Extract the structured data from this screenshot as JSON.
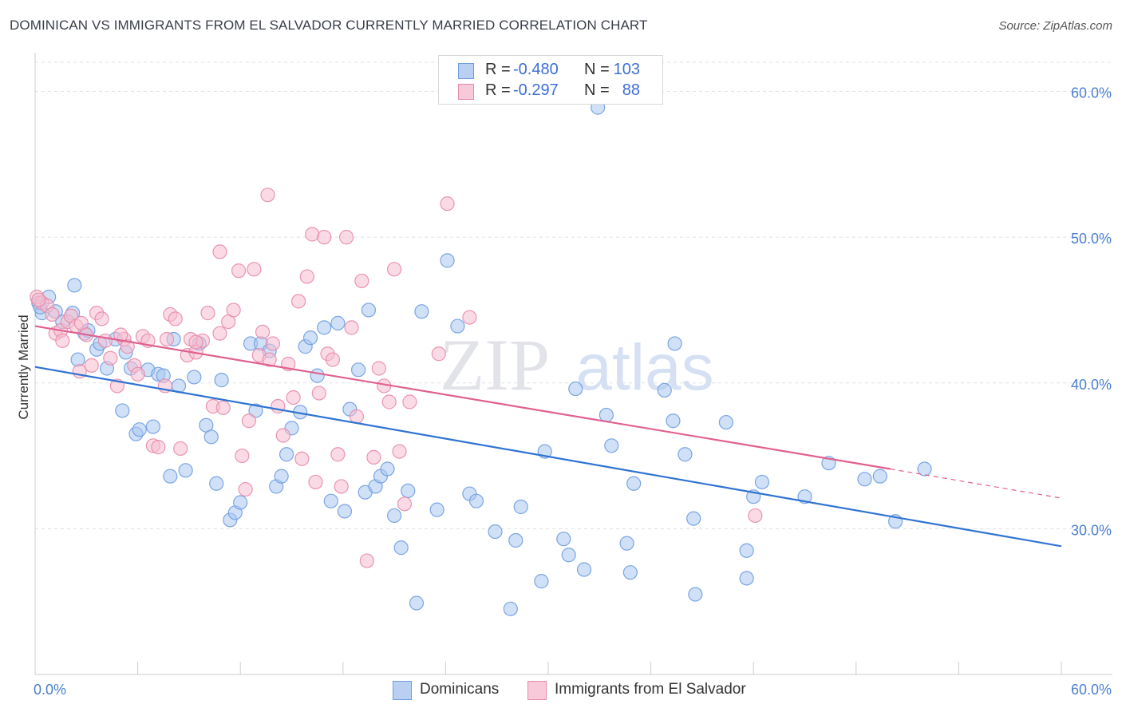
{
  "title": "DOMINICAN VS IMMIGRANTS FROM EL SALVADOR CURRENTLY MARRIED CORRELATION CHART",
  "source": "Source: ZipAtlas.com",
  "watermark": {
    "zip": "ZIP",
    "atlas": "atlas"
  },
  "legend": {
    "rows": [
      {
        "r_label": "R =",
        "r_value": "-0.480",
        "n_label": "N =",
        "n_value": "103"
      },
      {
        "r_label": "R =",
        "r_value": "-0.297",
        "n_label": "N =",
        "n_value": "88"
      }
    ]
  },
  "chart_data": {
    "type": "scatter",
    "title": "DOMINICAN VS IMMIGRANTS FROM EL SALVADOR CURRENTLY MARRIED CORRELATION CHART",
    "xlabel": "",
    "ylabel": "Currently Married",
    "xlim": [
      0,
      60
    ],
    "ylim": [
      20,
      62
    ],
    "x_tick_labels": [
      "0.0%",
      "60.0%"
    ],
    "y_ticks": [
      30,
      40,
      50,
      60
    ],
    "y_tick_labels": [
      "30.0%",
      "40.0%",
      "50.0%",
      "60.0%"
    ],
    "grid": true,
    "legend_position": "top-center",
    "series": [
      {
        "name": "Dominicans",
        "color": "#6e9de0",
        "fill": "#aac6f0",
        "r": -0.48,
        "n": 103,
        "trend": {
          "x": [
            0,
            60
          ],
          "y": [
            41.1,
            28.8
          ],
          "color": "#2f73d2"
        },
        "points": [
          [
            0.2,
            45.5
          ],
          [
            0.4,
            44.8
          ],
          [
            0.8,
            45.9
          ],
          [
            1.2,
            44.9
          ],
          [
            1.6,
            44.2
          ],
          [
            2.2,
            44.8
          ],
          [
            2.3,
            46.7
          ],
          [
            2.5,
            41.6
          ],
          [
            2.9,
            43.4
          ],
          [
            3.1,
            43.6
          ],
          [
            3.6,
            42.3
          ],
          [
            3.8,
            42.7
          ],
          [
            4.2,
            41.0
          ],
          [
            4.7,
            43.0
          ],
          [
            5.1,
            38.1
          ],
          [
            5.3,
            42.1
          ],
          [
            5.6,
            41.0
          ],
          [
            5.9,
            36.5
          ],
          [
            6.1,
            36.8
          ],
          [
            6.6,
            40.9
          ],
          [
            6.9,
            37.0
          ],
          [
            7.2,
            40.6
          ],
          [
            7.5,
            40.5
          ],
          [
            7.9,
            33.6
          ],
          [
            8.1,
            43.0
          ],
          [
            8.4,
            39.8
          ],
          [
            8.8,
            34.0
          ],
          [
            9.3,
            40.4
          ],
          [
            9.6,
            42.7
          ],
          [
            10.0,
            37.1
          ],
          [
            10.3,
            36.3
          ],
          [
            10.6,
            33.1
          ],
          [
            10.9,
            40.2
          ],
          [
            11.4,
            30.6
          ],
          [
            11.7,
            31.1
          ],
          [
            12.0,
            31.8
          ],
          [
            12.6,
            42.7
          ],
          [
            12.9,
            38.1
          ],
          [
            13.2,
            42.7
          ],
          [
            13.7,
            42.2
          ],
          [
            14.1,
            32.9
          ],
          [
            14.4,
            33.6
          ],
          [
            14.7,
            35.1
          ],
          [
            15.0,
            36.9
          ],
          [
            15.5,
            38.0
          ],
          [
            15.8,
            42.5
          ],
          [
            16.1,
            43.1
          ],
          [
            16.5,
            40.5
          ],
          [
            16.9,
            43.8
          ],
          [
            17.3,
            31.9
          ],
          [
            17.7,
            44.1
          ],
          [
            18.1,
            31.2
          ],
          [
            18.4,
            38.2
          ],
          [
            18.9,
            40.9
          ],
          [
            19.3,
            32.5
          ],
          [
            19.5,
            45.0
          ],
          [
            19.9,
            32.9
          ],
          [
            20.2,
            33.6
          ],
          [
            20.6,
            34.1
          ],
          [
            21.0,
            30.9
          ],
          [
            21.4,
            28.7
          ],
          [
            21.8,
            32.6
          ],
          [
            22.3,
            24.9
          ],
          [
            22.6,
            44.9
          ],
          [
            23.5,
            31.3
          ],
          [
            24.1,
            48.4
          ],
          [
            24.7,
            43.9
          ],
          [
            25.4,
            32.4
          ],
          [
            25.8,
            31.9
          ],
          [
            26.9,
            29.8
          ],
          [
            27.8,
            24.5
          ],
          [
            28.1,
            29.2
          ],
          [
            28.4,
            31.5
          ],
          [
            29.6,
            26.4
          ],
          [
            29.8,
            35.3
          ],
          [
            30.9,
            29.3
          ],
          [
            31.2,
            28.2
          ],
          [
            31.6,
            39.6
          ],
          [
            32.1,
            27.2
          ],
          [
            32.9,
            58.9
          ],
          [
            33.4,
            37.8
          ],
          [
            33.7,
            35.7
          ],
          [
            34.6,
            29.0
          ],
          [
            34.8,
            27.0
          ],
          [
            35.0,
            33.1
          ],
          [
            36.8,
            39.5
          ],
          [
            37.3,
            37.4
          ],
          [
            37.4,
            42.7
          ],
          [
            38.0,
            35.1
          ],
          [
            38.5,
            30.7
          ],
          [
            38.6,
            25.5
          ],
          [
            40.4,
            37.3
          ],
          [
            41.6,
            28.5
          ],
          [
            41.6,
            26.6
          ],
          [
            42.0,
            32.2
          ],
          [
            42.5,
            33.2
          ],
          [
            45.0,
            32.2
          ],
          [
            46.4,
            34.5
          ],
          [
            48.5,
            33.4
          ],
          [
            49.4,
            33.6
          ],
          [
            50.3,
            30.5
          ],
          [
            52.0,
            34.1
          ],
          [
            0.3,
            45.2
          ]
        ]
      },
      {
        "name": "Immigrants from El Salvador",
        "color": "#e88aaa",
        "fill": "#f5bed0",
        "r": -0.297,
        "n": 88,
        "trend": {
          "x": [
            0,
            50
          ],
          "y": [
            43.9,
            34.1
          ],
          "color": "#e0608f"
        },
        "trend_dashed": {
          "x": [
            50,
            60
          ],
          "y": [
            34.1,
            32.1
          ]
        },
        "points": [
          [
            0.1,
            45.9
          ],
          [
            0.4,
            45.5
          ],
          [
            0.7,
            45.3
          ],
          [
            1.0,
            44.7
          ],
          [
            1.2,
            43.4
          ],
          [
            1.5,
            43.6
          ],
          [
            1.6,
            42.9
          ],
          [
            1.9,
            44.2
          ],
          [
            2.1,
            44.6
          ],
          [
            2.4,
            43.9
          ],
          [
            2.7,
            44.1
          ],
          [
            3.0,
            43.3
          ],
          [
            3.3,
            41.2
          ],
          [
            3.6,
            44.8
          ],
          [
            3.9,
            44.4
          ],
          [
            4.1,
            42.9
          ],
          [
            4.4,
            41.7
          ],
          [
            4.8,
            39.8
          ],
          [
            5.2,
            43.0
          ],
          [
            5.4,
            42.5
          ],
          [
            5.8,
            41.2
          ],
          [
            6.0,
            40.6
          ],
          [
            6.3,
            43.2
          ],
          [
            6.6,
            42.9
          ],
          [
            6.9,
            35.7
          ],
          [
            7.2,
            35.6
          ],
          [
            7.6,
            39.8
          ],
          [
            7.9,
            44.7
          ],
          [
            8.2,
            44.4
          ],
          [
            8.5,
            35.5
          ],
          [
            8.9,
            41.9
          ],
          [
            9.1,
            43.0
          ],
          [
            9.4,
            42.1
          ],
          [
            9.8,
            42.9
          ],
          [
            10.1,
            44.8
          ],
          [
            10.4,
            38.4
          ],
          [
            10.8,
            49.0
          ],
          [
            11.0,
            38.3
          ],
          [
            11.3,
            44.2
          ],
          [
            11.6,
            45.0
          ],
          [
            11.9,
            47.7
          ],
          [
            12.1,
            35.0
          ],
          [
            12.3,
            32.7
          ],
          [
            12.5,
            37.4
          ],
          [
            12.8,
            47.8
          ],
          [
            13.1,
            41.9
          ],
          [
            13.3,
            43.5
          ],
          [
            13.6,
            52.9
          ],
          [
            13.9,
            42.7
          ],
          [
            14.2,
            38.4
          ],
          [
            14.5,
            36.4
          ],
          [
            14.8,
            41.3
          ],
          [
            15.1,
            39.0
          ],
          [
            15.4,
            45.6
          ],
          [
            15.6,
            34.8
          ],
          [
            15.9,
            47.3
          ],
          [
            16.2,
            50.2
          ],
          [
            16.4,
            33.2
          ],
          [
            16.6,
            39.3
          ],
          [
            16.9,
            50.0
          ],
          [
            17.1,
            42.0
          ],
          [
            17.4,
            41.6
          ],
          [
            17.7,
            35.1
          ],
          [
            17.9,
            32.9
          ],
          [
            18.2,
            50.0
          ],
          [
            18.5,
            43.8
          ],
          [
            18.8,
            37.7
          ],
          [
            19.1,
            47.0
          ],
          [
            19.4,
            27.8
          ],
          [
            19.8,
            34.9
          ],
          [
            20.1,
            41.0
          ],
          [
            20.4,
            39.8
          ],
          [
            20.7,
            38.7
          ],
          [
            21.0,
            47.8
          ],
          [
            21.3,
            35.3
          ],
          [
            21.6,
            31.7
          ],
          [
            21.9,
            38.7
          ],
          [
            23.6,
            42.0
          ],
          [
            24.1,
            52.3
          ],
          [
            25.4,
            44.5
          ],
          [
            42.1,
            30.9
          ],
          [
            13.7,
            41.6
          ],
          [
            7.7,
            43.0
          ],
          [
            5.0,
            43.3
          ],
          [
            9.4,
            42.8
          ],
          [
            10.8,
            43.4
          ],
          [
            2.6,
            40.8
          ],
          [
            0.2,
            45.7
          ]
        ]
      }
    ]
  }
}
